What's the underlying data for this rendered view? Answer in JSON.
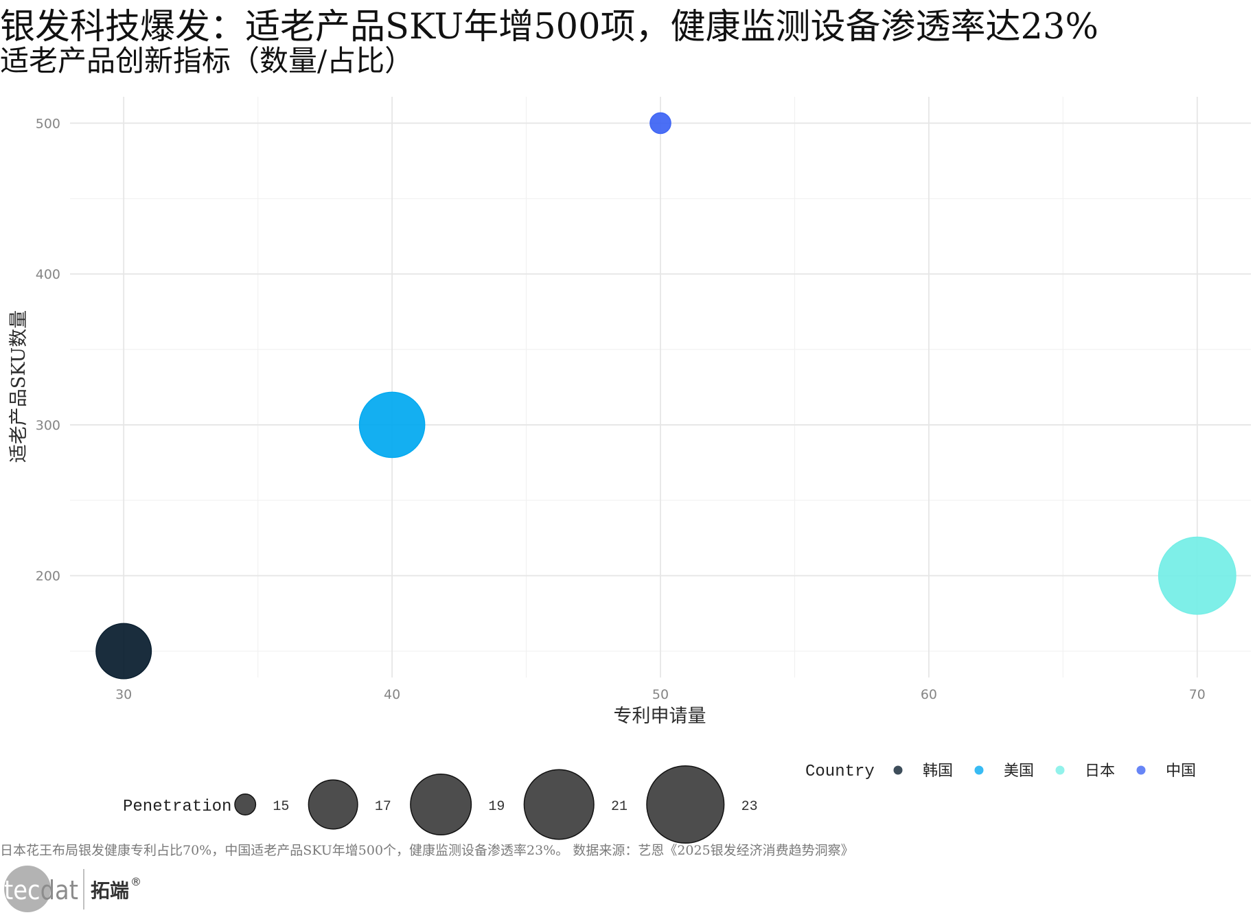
{
  "chart_data": {
    "type": "scatter",
    "title": "银发科技爆发：适老产品SKU年增500项，健康监测设备渗透率达23%",
    "subtitle": "适老产品创新指标（数量/占比）",
    "xlabel": "专利申请量",
    "ylabel": "适老产品SKU数量",
    "xlim": [
      28,
      72
    ],
    "ylim": [
      132.5,
      517.5
    ],
    "x_ticks": [
      30,
      40,
      50,
      60,
      70
    ],
    "y_ticks": [
      200,
      300,
      400,
      500
    ],
    "grid": true,
    "points": [
      {
        "country": "韩国",
        "x": 30,
        "y": 150,
        "penetration": 18,
        "color": "#061b2c"
      },
      {
        "country": "美国",
        "x": 40,
        "y": 300,
        "penetration": 20,
        "color": "#00a8f0"
      },
      {
        "country": "日本",
        "x": 70,
        "y": 200,
        "penetration": 23,
        "color": "#73eee6"
      },
      {
        "country": "中国",
        "x": 50,
        "y": 500,
        "penetration": 15,
        "color": "#3c63f4"
      }
    ],
    "legend": {
      "placement": "bottom",
      "color_title": "Country",
      "size_title": "Penetration",
      "size_breaks": [
        15,
        17,
        19,
        21,
        23
      ],
      "size_key_color": "#4d4d4d"
    },
    "caption": "日本花王布局银发健康专利占比70%，中国适老产品SKU年增500个，健康监测设备渗透率23%。 数据来源：艺恩《2025银发经济消费趋势洞察》"
  },
  "logo": {
    "mark_left": "tec",
    "mark_right": "dat",
    "name": "拓端",
    "registered": "®"
  }
}
